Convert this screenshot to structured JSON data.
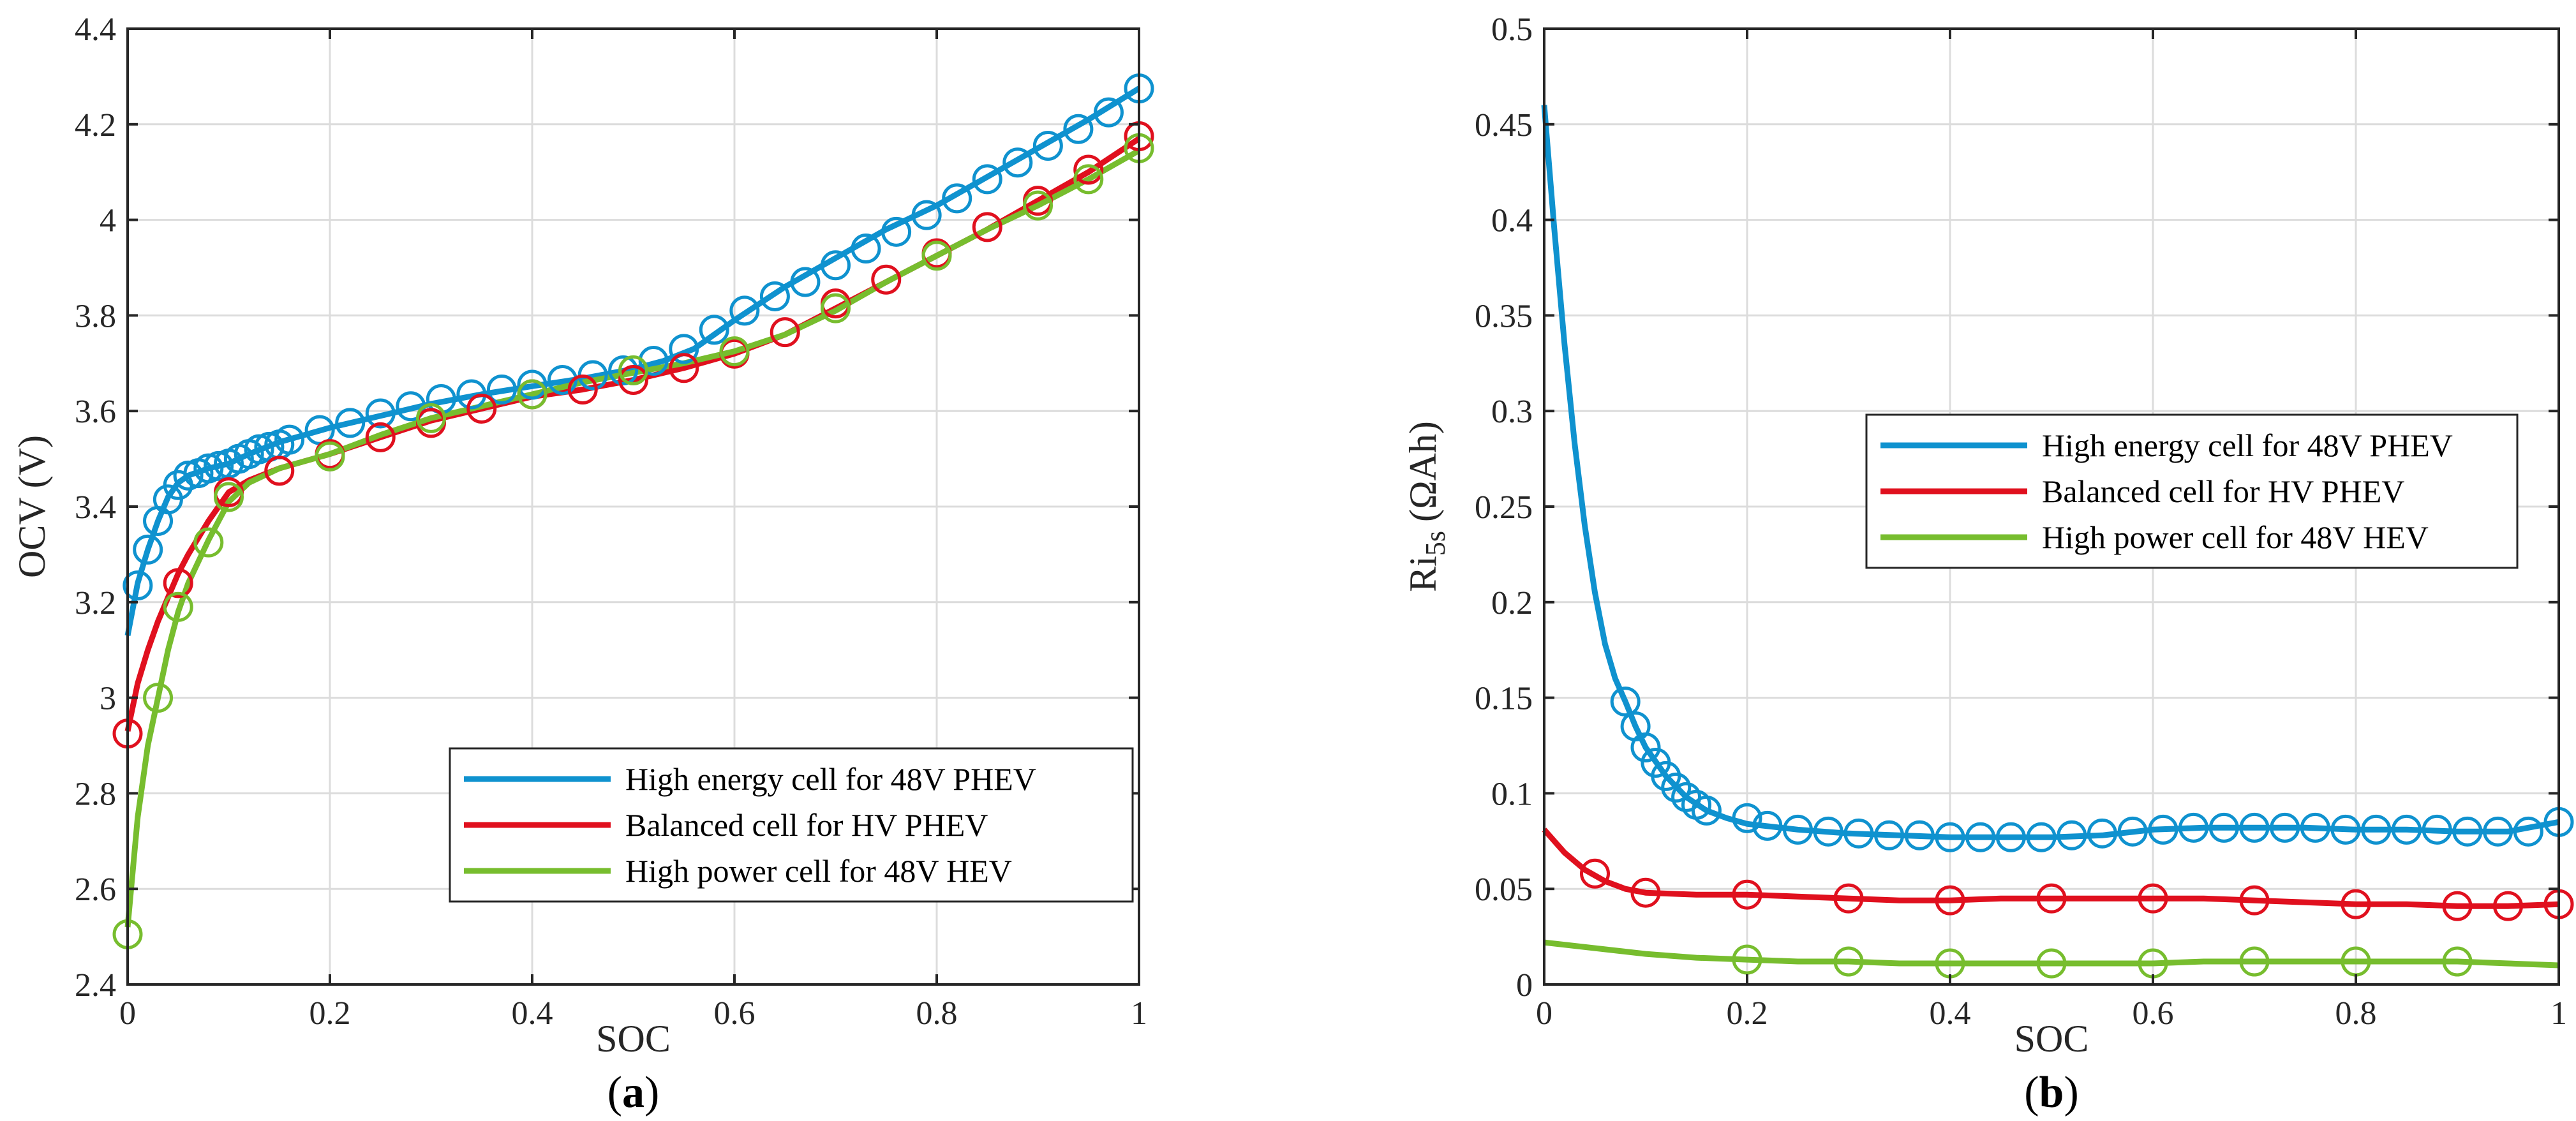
{
  "chart_data": [
    {
      "type": "line",
      "panel_label": {
        "open": "(",
        "letter": "a",
        "close": ")"
      },
      "xlabel": "SOC",
      "ylabel": "OCV (V)",
      "xlim": [
        0,
        1
      ],
      "ylim": [
        2.4,
        4.4
      ],
      "grid": true,
      "legend_position": "bottom-right",
      "xticks": [
        0,
        0.2,
        0.4,
        0.6,
        0.8,
        1
      ],
      "xtick_labels": [
        "0",
        "0.2",
        "0.4",
        "0.6",
        "0.8",
        "1"
      ],
      "yticks": [
        2.4,
        2.6,
        2.8,
        3.0,
        3.2,
        3.4,
        3.6,
        3.8,
        4.0,
        4.2,
        4.4
      ],
      "ytick_labels": [
        "2.4",
        "2.6",
        "2.8",
        "3",
        "3.2",
        "3.4",
        "3.6",
        "3.8",
        "4",
        "4.2",
        "4.4"
      ],
      "series": [
        {
          "name": "High energy cell for 48V PHEV",
          "color": "#0f92cf",
          "line": {
            "x": [
              0,
              0.01,
              0.02,
              0.03,
              0.04,
              0.05,
              0.06,
              0.08,
              0.1,
              0.12,
              0.15,
              0.2,
              0.25,
              0.3,
              0.35,
              0.4,
              0.45,
              0.5,
              0.53,
              0.56,
              0.6,
              0.65,
              0.7,
              0.75,
              0.8,
              0.85,
              0.9,
              0.95,
              1.0
            ],
            "y": [
              3.13,
              3.24,
              3.31,
              3.37,
              3.42,
              3.45,
              3.465,
              3.48,
              3.49,
              3.51,
              3.535,
              3.565,
              3.59,
              3.615,
              3.635,
              3.652,
              3.668,
              3.688,
              3.705,
              3.73,
              3.79,
              3.86,
              3.92,
              3.98,
              4.03,
              4.09,
              4.15,
              4.21,
              4.275
            ]
          },
          "markers": {
            "x": [
              0.01,
              0.02,
              0.03,
              0.04,
              0.05,
              0.06,
              0.07,
              0.08,
              0.09,
              0.1,
              0.11,
              0.12,
              0.13,
              0.14,
              0.15,
              0.16,
              0.19,
              0.22,
              0.25,
              0.28,
              0.31,
              0.34,
              0.37,
              0.4,
              0.43,
              0.46,
              0.49,
              0.52,
              0.55,
              0.58,
              0.61,
              0.64,
              0.67,
              0.7,
              0.73,
              0.76,
              0.79,
              0.82,
              0.85,
              0.88,
              0.91,
              0.94,
              0.97,
              1.0
            ],
            "y": [
              3.235,
              3.31,
              3.37,
              3.415,
              3.445,
              3.465,
              3.47,
              3.48,
              3.485,
              3.49,
              3.5,
              3.51,
              3.52,
              3.525,
              3.53,
              3.54,
              3.56,
              3.575,
              3.595,
              3.61,
              3.625,
              3.635,
              3.645,
              3.655,
              3.665,
              3.675,
              3.685,
              3.705,
              3.73,
              3.77,
              3.81,
              3.84,
              3.87,
              3.905,
              3.94,
              3.975,
              4.01,
              4.045,
              4.085,
              4.12,
              4.155,
              4.19,
              4.225,
              4.275
            ]
          }
        },
        {
          "name": "Balanced cell for HV PHEV",
          "color": "#e0101e",
          "line": {
            "x": [
              0,
              0.01,
              0.02,
              0.03,
              0.04,
              0.05,
              0.06,
              0.08,
              0.1,
              0.12,
              0.15,
              0.2,
              0.25,
              0.3,
              0.35,
              0.4,
              0.45,
              0.5,
              0.55,
              0.6,
              0.65,
              0.7,
              0.75,
              0.8,
              0.85,
              0.9,
              0.95,
              1.0
            ],
            "y": [
              2.93,
              3.03,
              3.1,
              3.16,
              3.21,
              3.26,
              3.3,
              3.37,
              3.43,
              3.455,
              3.48,
              3.51,
              3.545,
              3.58,
              3.605,
              3.63,
              3.645,
              3.665,
              3.69,
              3.72,
              3.76,
              3.815,
              3.87,
              3.925,
              3.98,
              4.04,
              4.1,
              4.17
            ]
          },
          "markers": {
            "x": [
              0,
              0.05,
              0.1,
              0.15,
              0.2,
              0.25,
              0.3,
              0.35,
              0.4,
              0.45,
              0.5,
              0.55,
              0.6,
              0.65,
              0.7,
              0.75,
              0.8,
              0.85,
              0.9,
              0.95,
              1.0
            ],
            "y": [
              2.925,
              3.24,
              3.43,
              3.475,
              3.51,
              3.545,
              3.575,
              3.605,
              3.635,
              3.645,
              3.665,
              3.69,
              3.72,
              3.765,
              3.825,
              3.875,
              3.93,
              3.985,
              4.04,
              4.105,
              4.175
            ]
          }
        },
        {
          "name": "High power cell for 48V HEV",
          "color": "#77bd2e",
          "line": {
            "x": [
              0,
              0.01,
              0.02,
              0.03,
              0.04,
              0.05,
              0.06,
              0.08,
              0.1,
              0.12,
              0.15,
              0.2,
              0.25,
              0.3,
              0.35,
              0.4,
              0.45,
              0.5,
              0.55,
              0.6,
              0.65,
              0.7,
              0.75,
              0.8,
              0.85,
              0.9,
              0.95,
              1.0
            ],
            "y": [
              2.52,
              2.75,
              2.9,
              3.0,
              3.1,
              3.18,
              3.24,
              3.33,
              3.41,
              3.45,
              3.48,
              3.51,
              3.55,
              3.585,
              3.61,
              3.635,
              3.66,
              3.68,
              3.7,
              3.725,
              3.76,
              3.81,
              3.87,
              3.925,
              3.98,
              4.03,
              4.085,
              4.145
            ]
          },
          "markers": {
            "x": [
              0,
              0.03,
              0.05,
              0.08,
              0.1,
              0.2,
              0.3,
              0.4,
              0.5,
              0.6,
              0.7,
              0.8,
              0.9,
              0.95,
              1.0
            ],
            "y": [
              2.505,
              3.0,
              3.19,
              3.325,
              3.42,
              3.505,
              3.585,
              3.635,
              3.685,
              3.725,
              3.815,
              3.925,
              4.03,
              4.085,
              4.15
            ]
          }
        }
      ]
    },
    {
      "type": "line",
      "panel_label": {
        "open": "(",
        "letter": "b",
        "close": ")"
      },
      "xlabel": "SOC",
      "ylabel": {
        "main": "Ri",
        "sub": "5s",
        "unit": "(ΩAh)"
      },
      "xlim": [
        0,
        1
      ],
      "ylim": [
        0,
        0.5
      ],
      "grid": true,
      "legend_position": "center-right",
      "xticks": [
        0,
        0.2,
        0.4,
        0.6,
        0.8,
        1
      ],
      "xtick_labels": [
        "0",
        "0.2",
        "0.4",
        "0.6",
        "0.8",
        "1"
      ],
      "yticks": [
        0,
        0.05,
        0.1,
        0.15,
        0.2,
        0.25,
        0.3,
        0.35,
        0.4,
        0.45,
        0.5
      ],
      "ytick_labels": [
        "0",
        "0.05",
        "0.1",
        "0.15",
        "0.2",
        "0.25",
        "0.3",
        "0.35",
        "0.4",
        "0.45",
        "0.5"
      ],
      "series": [
        {
          "name": "High energy cell for 48V PHEV",
          "color": "#0f92cf",
          "line": {
            "x": [
              0,
              0.01,
              0.02,
              0.03,
              0.04,
              0.05,
              0.06,
              0.07,
              0.08,
              0.09,
              0.1,
              0.12,
              0.14,
              0.16,
              0.18,
              0.2,
              0.25,
              0.3,
              0.35,
              0.4,
              0.45,
              0.5,
              0.55,
              0.6,
              0.65,
              0.7,
              0.75,
              0.8,
              0.85,
              0.9,
              0.95,
              1.0
            ],
            "y": [
              0.46,
              0.395,
              0.335,
              0.283,
              0.24,
              0.205,
              0.178,
              0.16,
              0.148,
              0.135,
              0.124,
              0.109,
              0.098,
              0.091,
              0.087,
              0.084,
              0.081,
              0.079,
              0.078,
              0.077,
              0.077,
              0.077,
              0.078,
              0.081,
              0.082,
              0.082,
              0.082,
              0.081,
              0.081,
              0.08,
              0.08,
              0.085
            ]
          },
          "markers": {
            "x": [
              0.08,
              0.09,
              0.1,
              0.11,
              0.12,
              0.13,
              0.14,
              0.15,
              0.16,
              0.2,
              0.22,
              0.25,
              0.28,
              0.31,
              0.34,
              0.37,
              0.4,
              0.43,
              0.46,
              0.49,
              0.52,
              0.55,
              0.58,
              0.61,
              0.64,
              0.67,
              0.7,
              0.73,
              0.76,
              0.79,
              0.82,
              0.85,
              0.88,
              0.91,
              0.94,
              0.97,
              1.0
            ],
            "y": [
              0.148,
              0.135,
              0.124,
              0.116,
              0.109,
              0.103,
              0.098,
              0.094,
              0.091,
              0.087,
              0.083,
              0.081,
              0.08,
              0.079,
              0.078,
              0.078,
              0.077,
              0.077,
              0.077,
              0.077,
              0.078,
              0.079,
              0.08,
              0.081,
              0.082,
              0.082,
              0.082,
              0.082,
              0.082,
              0.081,
              0.081,
              0.081,
              0.081,
              0.08,
              0.08,
              0.08,
              0.085
            ]
          }
        },
        {
          "name": "Balanced cell for HV PHEV",
          "color": "#e0101e",
          "line": {
            "x": [
              0,
              0.02,
              0.04,
              0.06,
              0.08,
              0.1,
              0.15,
              0.2,
              0.25,
              0.3,
              0.35,
              0.4,
              0.45,
              0.5,
              0.55,
              0.6,
              0.65,
              0.7,
              0.75,
              0.8,
              0.85,
              0.9,
              0.95,
              1.0
            ],
            "y": [
              0.081,
              0.069,
              0.06,
              0.054,
              0.05,
              0.048,
              0.047,
              0.047,
              0.046,
              0.045,
              0.044,
              0.044,
              0.045,
              0.045,
              0.045,
              0.045,
              0.045,
              0.044,
              0.043,
              0.042,
              0.042,
              0.041,
              0.041,
              0.042
            ]
          },
          "markers": {
            "x": [
              0.05,
              0.1,
              0.2,
              0.3,
              0.4,
              0.5,
              0.6,
              0.7,
              0.8,
              0.9,
              0.95,
              1.0
            ],
            "y": [
              0.058,
              0.048,
              0.047,
              0.045,
              0.044,
              0.045,
              0.045,
              0.044,
              0.042,
              0.041,
              0.041,
              0.042
            ]
          }
        },
        {
          "name": "High power cell for 48V HEV",
          "color": "#77bd2e",
          "line": {
            "x": [
              0,
              0.05,
              0.1,
              0.15,
              0.2,
              0.25,
              0.3,
              0.35,
              0.4,
              0.45,
              0.5,
              0.55,
              0.6,
              0.65,
              0.7,
              0.75,
              0.8,
              0.85,
              0.9,
              0.95,
              1.0
            ],
            "y": [
              0.022,
              0.019,
              0.016,
              0.014,
              0.013,
              0.012,
              0.012,
              0.011,
              0.011,
              0.011,
              0.011,
              0.011,
              0.011,
              0.012,
              0.012,
              0.012,
              0.012,
              0.012,
              0.012,
              0.011,
              0.01
            ]
          },
          "markers": {
            "x": [
              0.2,
              0.3,
              0.4,
              0.5,
              0.6,
              0.7,
              0.8,
              0.9
            ],
            "y": [
              0.013,
              0.012,
              0.011,
              0.011,
              0.011,
              0.012,
              0.012,
              0.012
            ]
          }
        }
      ]
    }
  ]
}
